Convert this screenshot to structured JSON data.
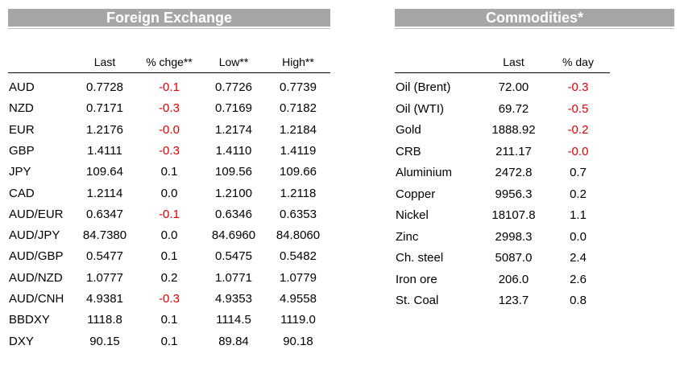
{
  "fx": {
    "title": "Foreign Exchange",
    "columns": [
      "Last",
      "% chge**",
      "Low**",
      "High**"
    ],
    "rows": [
      {
        "label": "AUD",
        "last": "0.7728",
        "chg": "-0.1",
        "low": "0.7726",
        "high": "0.7739"
      },
      {
        "label": "NZD",
        "last": "0.7171",
        "chg": "-0.3",
        "low": "0.7169",
        "high": "0.7182"
      },
      {
        "label": "EUR",
        "last": "1.2176",
        "chg": "-0.0",
        "low": "1.2174",
        "high": "1.2184"
      },
      {
        "label": "GBP",
        "last": "1.4111",
        "chg": "-0.3",
        "low": "1.4110",
        "high": "1.4119"
      },
      {
        "label": "JPY",
        "last": "109.64",
        "chg": "0.1",
        "low": "109.56",
        "high": "109.66"
      },
      {
        "label": "CAD",
        "last": "1.2114",
        "chg": "0.0",
        "low": "1.2100",
        "high": "1.2118"
      },
      {
        "label": "AUD/EUR",
        "last": "0.6347",
        "chg": "-0.1",
        "low": "0.6346",
        "high": "0.6353"
      },
      {
        "label": "AUD/JPY",
        "last": "84.7380",
        "chg": "0.0",
        "low": "84.6960",
        "high": "84.8060"
      },
      {
        "label": "AUD/GBP",
        "last": "0.5477",
        "chg": "0.1",
        "low": "0.5475",
        "high": "0.5482"
      },
      {
        "label": "AUD/NZD",
        "last": "1.0777",
        "chg": "0.2",
        "low": "1.0771",
        "high": "1.0779"
      },
      {
        "label": "AUD/CNH",
        "last": "4.9381",
        "chg": "-0.3",
        "low": "4.9353",
        "high": "4.9558"
      },
      {
        "label": "BBDXY",
        "last": "1118.8",
        "chg": "0.1",
        "low": "1114.5",
        "high": "1119.0"
      },
      {
        "label": "DXY",
        "last": "90.15",
        "chg": "0.1",
        "low": "89.84",
        "high": "90.18"
      }
    ]
  },
  "commodities": {
    "title": "Commodities*",
    "columns": [
      "Last",
      "% day"
    ],
    "rows": [
      {
        "label": "Oil (Brent)",
        "last": "72.00",
        "day": "-0.3"
      },
      {
        "label": "Oil (WTI)",
        "last": "69.72",
        "day": "-0.5"
      },
      {
        "label": "Gold",
        "last": "1888.92",
        "day": "-0.2"
      },
      {
        "label": "CRB",
        "last": "211.17",
        "day": "-0.0"
      },
      {
        "label": "Aluminium",
        "last": "2472.8",
        "day": "0.7"
      },
      {
        "label": "Copper",
        "last": "9956.3",
        "day": "0.2"
      },
      {
        "label": "Nickel",
        "last": "18107.8",
        "day": "1.1"
      },
      {
        "label": "Zinc",
        "last": "2998.3",
        "day": "0.0"
      },
      {
        "label": "Ch. steel",
        "last": "5087.0",
        "day": "2.4"
      },
      {
        "label": "Iron ore",
        "last": "206.0",
        "day": "2.6"
      },
      {
        "label": "St. Coal",
        "last": "123.7",
        "day": "0.8"
      }
    ]
  },
  "colors": {
    "negative": "#e00000",
    "banner": "#a6a6a6"
  }
}
